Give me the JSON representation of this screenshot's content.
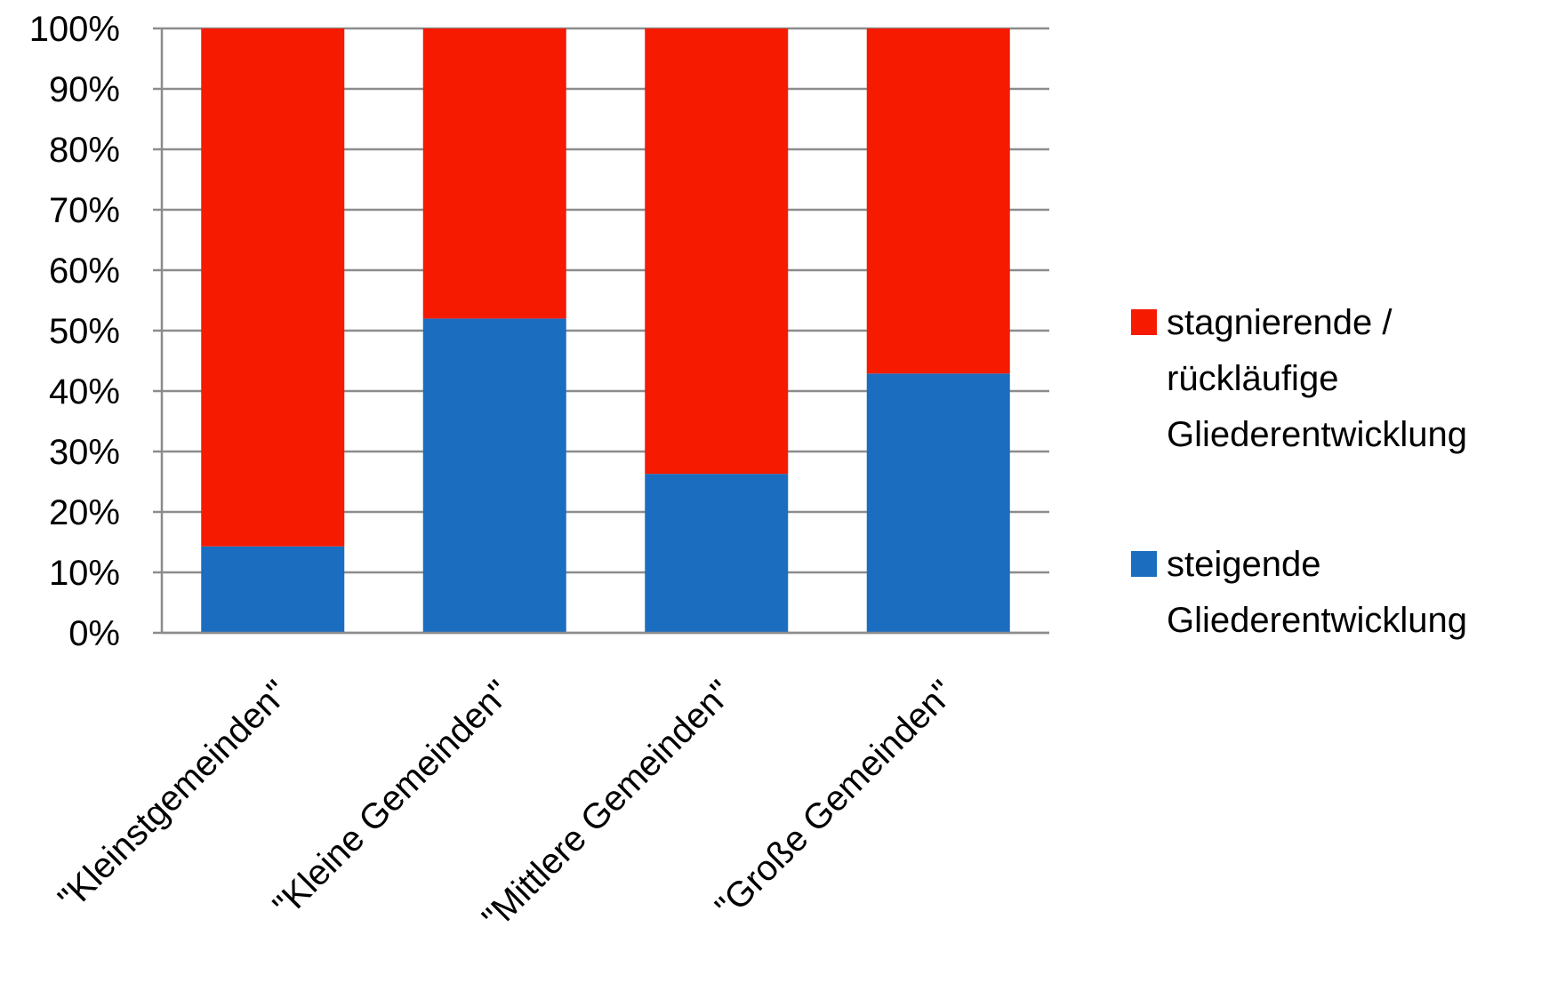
{
  "chart_data": {
    "type": "bar",
    "stacked": true,
    "categories": [
      "\"Kleinstgemeinden\"",
      "\"Kleine Gemeinden\"",
      "\"Mittlere Gemeinden\"",
      "\"Große Gemeinden\""
    ],
    "series": [
      {
        "name": "steigende Gliederentwicklung",
        "legend_lines": [
          "steigende",
          "Gliederentwicklung"
        ],
        "color": "#1b6dbf",
        "values": [
          14.3,
          52,
          26.3,
          42.9
        ]
      },
      {
        "name": "stagnierende / rückläufige Gliederentwicklung",
        "legend_lines": [
          "stagnierende /",
          "rückläufige",
          "Gliederentwicklung"
        ],
        "color": "#f51a00",
        "values": [
          85.7,
          48,
          73.7,
          57.1
        ]
      }
    ],
    "yticks": [
      "0%",
      "10%",
      "20%",
      "30%",
      "40%",
      "50%",
      "60%",
      "70%",
      "80%",
      "90%",
      "100%"
    ],
    "ylim": [
      0,
      100
    ],
    "grid": true,
    "legend_position": "right",
    "title": "",
    "xlabel": "",
    "ylabel": ""
  }
}
